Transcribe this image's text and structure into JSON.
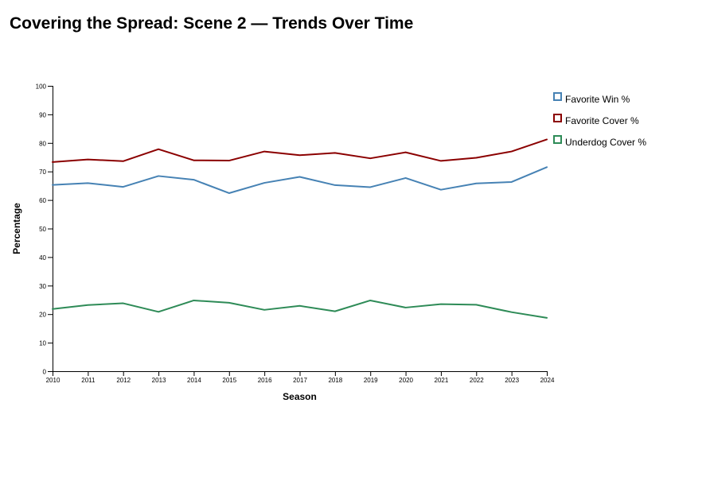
{
  "page": {
    "title": "Covering the Spread: Scene 2 — Trends Over Time"
  },
  "chart_data": {
    "type": "line",
    "title": "",
    "xlabel": "Season",
    "ylabel": "Percentage",
    "x": [
      2010,
      2011,
      2012,
      2013,
      2014,
      2015,
      2016,
      2017,
      2018,
      2019,
      2020,
      2021,
      2022,
      2023,
      2024
    ],
    "xlim": [
      2010,
      2024
    ],
    "ylim": [
      0,
      100
    ],
    "yticks": [
      0,
      10,
      20,
      30,
      40,
      50,
      60,
      70,
      80,
      90,
      100
    ],
    "grid": false,
    "legend_position": "top-right",
    "series": [
      {
        "name": "Favorite Win %",
        "color": "#4682b4",
        "values": [
          65.3,
          65.9,
          64.6,
          68.4,
          67.1,
          62.4,
          66.0,
          68.1,
          65.2,
          64.5,
          67.7,
          63.6,
          65.8,
          66.3,
          71.5
        ]
      },
      {
        "name": "Favorite Cover %",
        "color": "#8b0000",
        "values": [
          73.3,
          74.2,
          73.6,
          77.8,
          73.9,
          73.8,
          77.0,
          75.7,
          76.5,
          74.6,
          76.7,
          73.7,
          74.8,
          77.0,
          81.2
        ]
      },
      {
        "name": "Underdog Cover %",
        "color": "#2e8b57",
        "values": [
          21.8,
          23.2,
          23.8,
          20.8,
          24.8,
          24.0,
          21.5,
          22.9,
          21.0,
          24.8,
          22.3,
          23.5,
          23.3,
          20.7,
          18.7
        ]
      }
    ]
  }
}
